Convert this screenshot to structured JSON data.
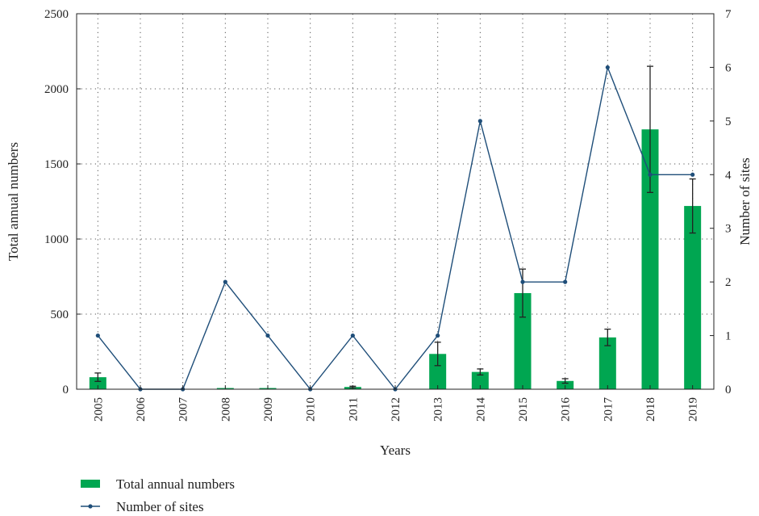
{
  "chart_data": {
    "type": "bar+line",
    "title": "",
    "xlabel": "Years",
    "ylabel_left": "Total annual numbers",
    "ylabel_right": "Number of sites",
    "categories": [
      "2005",
      "2006",
      "2007",
      "2008",
      "2009",
      "2010",
      "2011",
      "2012",
      "2013",
      "2014",
      "2015",
      "2016",
      "2017",
      "2018",
      "2019"
    ],
    "y_left": {
      "min": 0,
      "max": 2500,
      "ticks": [
        "0",
        "500",
        "1000",
        "1500",
        "2000",
        "2500"
      ]
    },
    "y_right": {
      "min": 0,
      "max": 7,
      "ticks": [
        "0",
        "1",
        "2",
        "3",
        "4",
        "5",
        "6",
        "7"
      ]
    },
    "grid": true,
    "legend_position": "bottom-left",
    "series": [
      {
        "name": "Total annual numbers",
        "type": "bar",
        "axis": "left",
        "color": "#00a651",
        "values": [
          80,
          0,
          0,
          8,
          8,
          0,
          15,
          0,
          235,
          115,
          640,
          55,
          345,
          1730,
          1220
        ],
        "error": [
          28,
          0,
          0,
          0,
          0,
          0,
          5,
          0,
          78,
          20,
          160,
          15,
          55,
          420,
          180
        ]
      },
      {
        "name": "Number of sites",
        "type": "line",
        "axis": "right",
        "color": "#1f4e79",
        "values": [
          1,
          0,
          0,
          2,
          1,
          0,
          1,
          0,
          1,
          5,
          2,
          2,
          6,
          4,
          4
        ]
      }
    ]
  }
}
